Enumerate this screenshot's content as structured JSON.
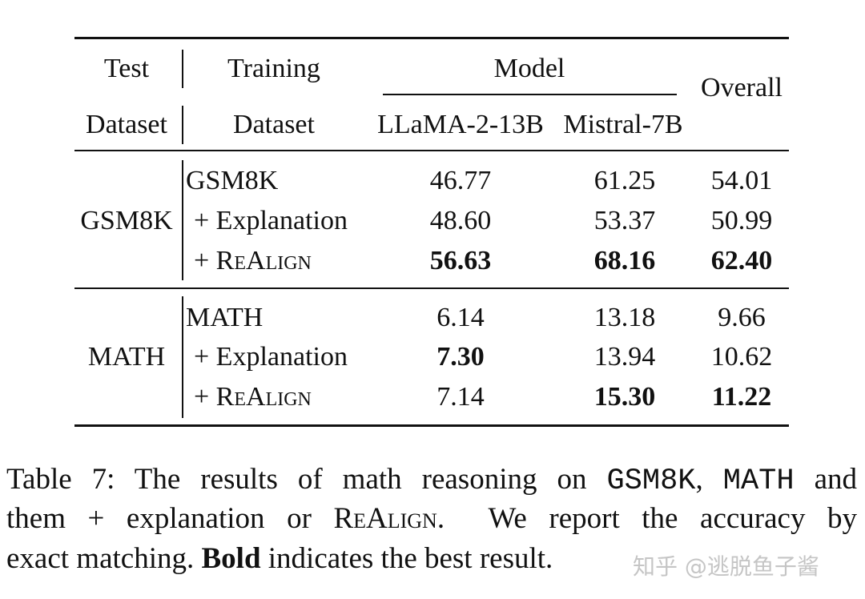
{
  "table": {
    "header": {
      "test_dataset": [
        "Test",
        "Dataset"
      ],
      "training_dataset": [
        "Training",
        "Dataset"
      ],
      "model": "Model",
      "models": [
        "LLaMA-2-13B",
        "Mistral-7B"
      ],
      "overall": "Overall"
    },
    "groups": [
      {
        "test_dataset": "GSM8K",
        "rows": [
          {
            "training": "GSM8K",
            "values": [
              "46.77",
              "61.25",
              "54.01"
            ],
            "bold": [
              false,
              false,
              false
            ]
          },
          {
            "training": "+ Explanation",
            "values": [
              "48.60",
              "53.37",
              "50.99"
            ],
            "bold": [
              false,
              false,
              false
            ]
          },
          {
            "training": "+ ReAlign",
            "style": "smallcaps",
            "values": [
              "56.63",
              "68.16",
              "62.40"
            ],
            "bold": [
              true,
              true,
              true
            ]
          }
        ]
      },
      {
        "test_dataset": "MATH",
        "rows": [
          {
            "training": "MATH",
            "values": [
              "6.14",
              "13.18",
              "9.66"
            ],
            "bold": [
              false,
              false,
              false
            ]
          },
          {
            "training": "+ Explanation",
            "values": [
              "7.30",
              "13.94",
              "10.62"
            ],
            "bold": [
              true,
              false,
              false
            ]
          },
          {
            "training": "+ ReAlign",
            "style": "smallcaps",
            "values": [
              "7.14",
              "15.30",
              "11.22"
            ],
            "bold": [
              false,
              true,
              true
            ]
          }
        ]
      }
    ]
  },
  "caption": {
    "lines": [
      [
        {
          "text": "Table 7: The results of math reasoning on "
        },
        {
          "text": "GSM8K",
          "style": "mono"
        },
        {
          "text": ", "
        },
        {
          "text": "MATH",
          "style": "mono"
        },
        {
          "text": " and"
        }
      ],
      [
        {
          "text": "them + explanation or "
        },
        {
          "text": "ReAlign",
          "style": "smallcaps"
        },
        {
          "text": ".  We report the accuracy by"
        }
      ],
      [
        {
          "text": "exact matching. "
        },
        {
          "text": "Bold",
          "style": "bold"
        },
        {
          "text": " indicates the best result."
        }
      ]
    ]
  },
  "watermark": "知乎 @逃脱鱼子酱"
}
